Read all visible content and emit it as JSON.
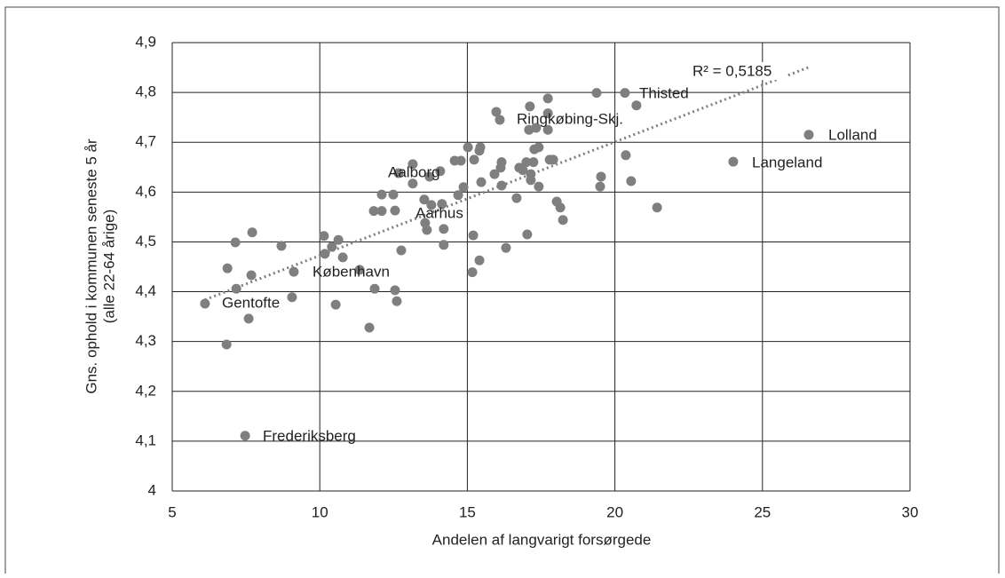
{
  "chart_data": {
    "type": "scatter",
    "xlabel": "Andelen af langvarigt forsørgede",
    "ylabel": [
      "Gns. ophold  i kommunen seneste 5 år",
      "(alle 22-64 årige)"
    ],
    "color": "#7f7f7f",
    "grid": true,
    "xlim": [
      5,
      30
    ],
    "xticks": [
      5,
      10,
      15,
      20,
      25,
      30
    ],
    "ylim": [
      4,
      4.9
    ],
    "yticks": [
      4,
      {
        "value": 4.1,
        "label": "4,1"
      },
      {
        "value": 4.2,
        "label": "4,2"
      },
      {
        "value": 4.3,
        "label": "4,3"
      },
      {
        "value": 4.4,
        "label": "4,4"
      },
      {
        "value": 4.5,
        "label": "4,5"
      },
      {
        "value": 4.6,
        "label": "4,6"
      },
      {
        "value": 4.7,
        "label": "4,7"
      },
      {
        "value": 4.8,
        "label": "4,8"
      },
      {
        "value": 4.9,
        "label": "4,9"
      }
    ],
    "trendline_label": "R² = 0,5185",
    "annotations": [
      "Thisted",
      "Ringkøbing-Skj.",
      "Lolland",
      "Langeland",
      "Aalborg",
      "Aarhus",
      "København",
      "Gentofte",
      "Frederiksberg"
    ],
    "x": [
      6.11,
      6.87,
      6.84,
      7.14,
      7.17,
      7.59,
      7.68,
      7.71,
      7.47,
      8.7,
      9.12,
      9.06,
      10.14,
      10.17,
      10.41,
      10.63,
      10.78,
      10.54,
      11.35,
      11.83,
      11.86,
      11.68,
      12.1,
      12.1,
      12.49,
      12.55,
      12.55,
      12.61,
      12.67,
      12.76,
      13.15,
      13.15,
      13.54,
      13.57,
      13.63,
      13.78,
      13.72,
      14.08,
      14.14,
      14.2,
      14.2,
      14.57,
      14.69,
      14.78,
      14.87,
      15.02,
      15.17,
      15.2,
      15.23,
      15.41,
      15.41,
      15.44,
      15.47,
      15.92,
      15.98,
      16.1,
      16.13,
      16.16,
      16.16,
      16.31,
      16.67,
      16.76,
      16.88,
      17.0,
      17.03,
      17.12,
      17.09,
      17.15,
      17.15,
      17.24,
      17.27,
      17.33,
      17.42,
      17.42,
      17.73,
      17.73,
      17.73,
      17.79,
      17.91,
      18.03,
      18.15,
      18.24,
      19.53,
      19.5,
      19.38,
      20.37,
      20.34,
      20.55,
      20.73,
      21.43,
      24.01,
      26.57
    ],
    "values": [
      4.376,
      4.447,
      4.294,
      4.499,
      4.406,
      4.346,
      4.433,
      4.519,
      4.111,
      4.492,
      4.44,
      4.389,
      4.512,
      4.476,
      4.49,
      4.504,
      4.469,
      4.374,
      4.444,
      4.562,
      4.406,
      4.328,
      4.595,
      4.562,
      4.595,
      4.563,
      4.403,
      4.381,
      4.638,
      4.483,
      4.656,
      4.617,
      4.585,
      4.538,
      4.524,
      4.574,
      4.631,
      4.642,
      4.576,
      4.526,
      4.494,
      4.663,
      4.594,
      4.663,
      4.61,
      4.69,
      4.439,
      4.513,
      4.665,
      4.463,
      4.683,
      4.69,
      4.62,
      4.636,
      4.761,
      4.745,
      4.649,
      4.66,
      4.613,
      4.488,
      4.588,
      4.649,
      4.644,
      4.66,
      4.515,
      4.772,
      4.725,
      4.636,
      4.624,
      4.66,
      4.686,
      4.729,
      4.69,
      4.611,
      4.788,
      4.758,
      4.725,
      4.665,
      4.665,
      4.581,
      4.569,
      4.544,
      4.631,
      4.611,
      4.799,
      4.674,
      4.799,
      4.622,
      4.774,
      4.569,
      4.661,
      4.715
    ]
  }
}
